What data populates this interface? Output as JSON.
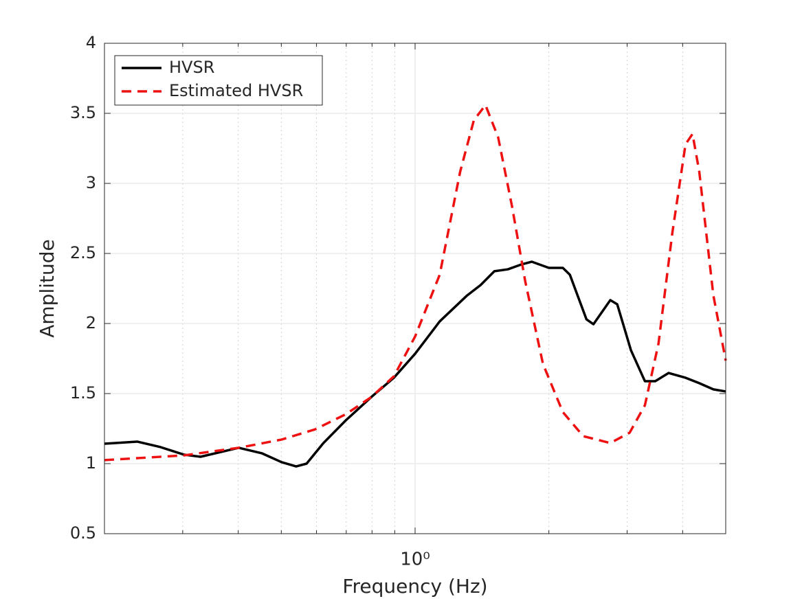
{
  "chart_data": {
    "type": "line",
    "xlabel": "Frequency (Hz)",
    "ylabel": "Amplitude",
    "xscale": "log",
    "xlim": [
      0.2,
      5
    ],
    "ylim": [
      0.5,
      4
    ],
    "xticks": [
      {
        "value": 1,
        "label": "10⁰"
      }
    ],
    "xminor": [
      0.3,
      0.4,
      0.5,
      0.6,
      0.7,
      0.8,
      0.9,
      2,
      3,
      4
    ],
    "yticks": [
      0.5,
      1,
      1.5,
      2,
      2.5,
      3,
      3.5,
      4
    ],
    "grid": true,
    "legend": "upper left",
    "series": [
      {
        "name": "HVSR",
        "color": "#000000",
        "dash": "solid",
        "x": [
          0.2,
          0.237,
          0.266,
          0.302,
          0.329,
          0.401,
          0.452,
          0.501,
          0.54,
          0.57,
          0.622,
          0.699,
          0.797,
          0.896,
          1.0,
          1.136,
          1.309,
          1.405,
          1.508,
          1.618,
          1.737,
          1.83,
          2.0,
          2.15,
          2.23,
          2.43,
          2.52,
          2.75,
          2.85,
          3.06,
          3.29,
          3.47,
          3.72,
          4.06,
          4.36,
          4.69,
          5.0
        ],
        "values": [
          1.142,
          1.157,
          1.12,
          1.064,
          1.049,
          1.113,
          1.074,
          1.01,
          0.98,
          1.0,
          1.147,
          1.31,
          1.475,
          1.613,
          1.784,
          2.015,
          2.2,
          2.275,
          2.373,
          2.387,
          2.422,
          2.441,
          2.397,
          2.397,
          2.348,
          2.03,
          1.995,
          2.167,
          2.137,
          1.809,
          1.588,
          1.588,
          1.647,
          1.613,
          1.574,
          1.53,
          1.515
        ]
      },
      {
        "name": "Estimated HVSR",
        "color": "#ee1111",
        "dash": "dashed",
        "x": [
          0.2,
          0.302,
          0.401,
          0.501,
          0.596,
          0.699,
          0.797,
          0.896,
          1.0,
          1.136,
          1.263,
          1.356,
          1.44,
          1.538,
          1.652,
          1.77,
          1.94,
          2.15,
          2.39,
          2.75,
          3.04,
          3.29,
          3.53,
          3.79,
          4.06,
          4.21,
          4.36,
          4.69,
          5.0
        ],
        "values": [
          1.025,
          1.059,
          1.113,
          1.172,
          1.245,
          1.353,
          1.475,
          1.623,
          1.907,
          2.348,
          3.083,
          3.451,
          3.559,
          3.328,
          2.838,
          2.299,
          1.711,
          1.368,
          1.196,
          1.147,
          1.221,
          1.417,
          1.858,
          2.642,
          3.279,
          3.353,
          3.083,
          2.201,
          1.735
        ]
      }
    ]
  }
}
